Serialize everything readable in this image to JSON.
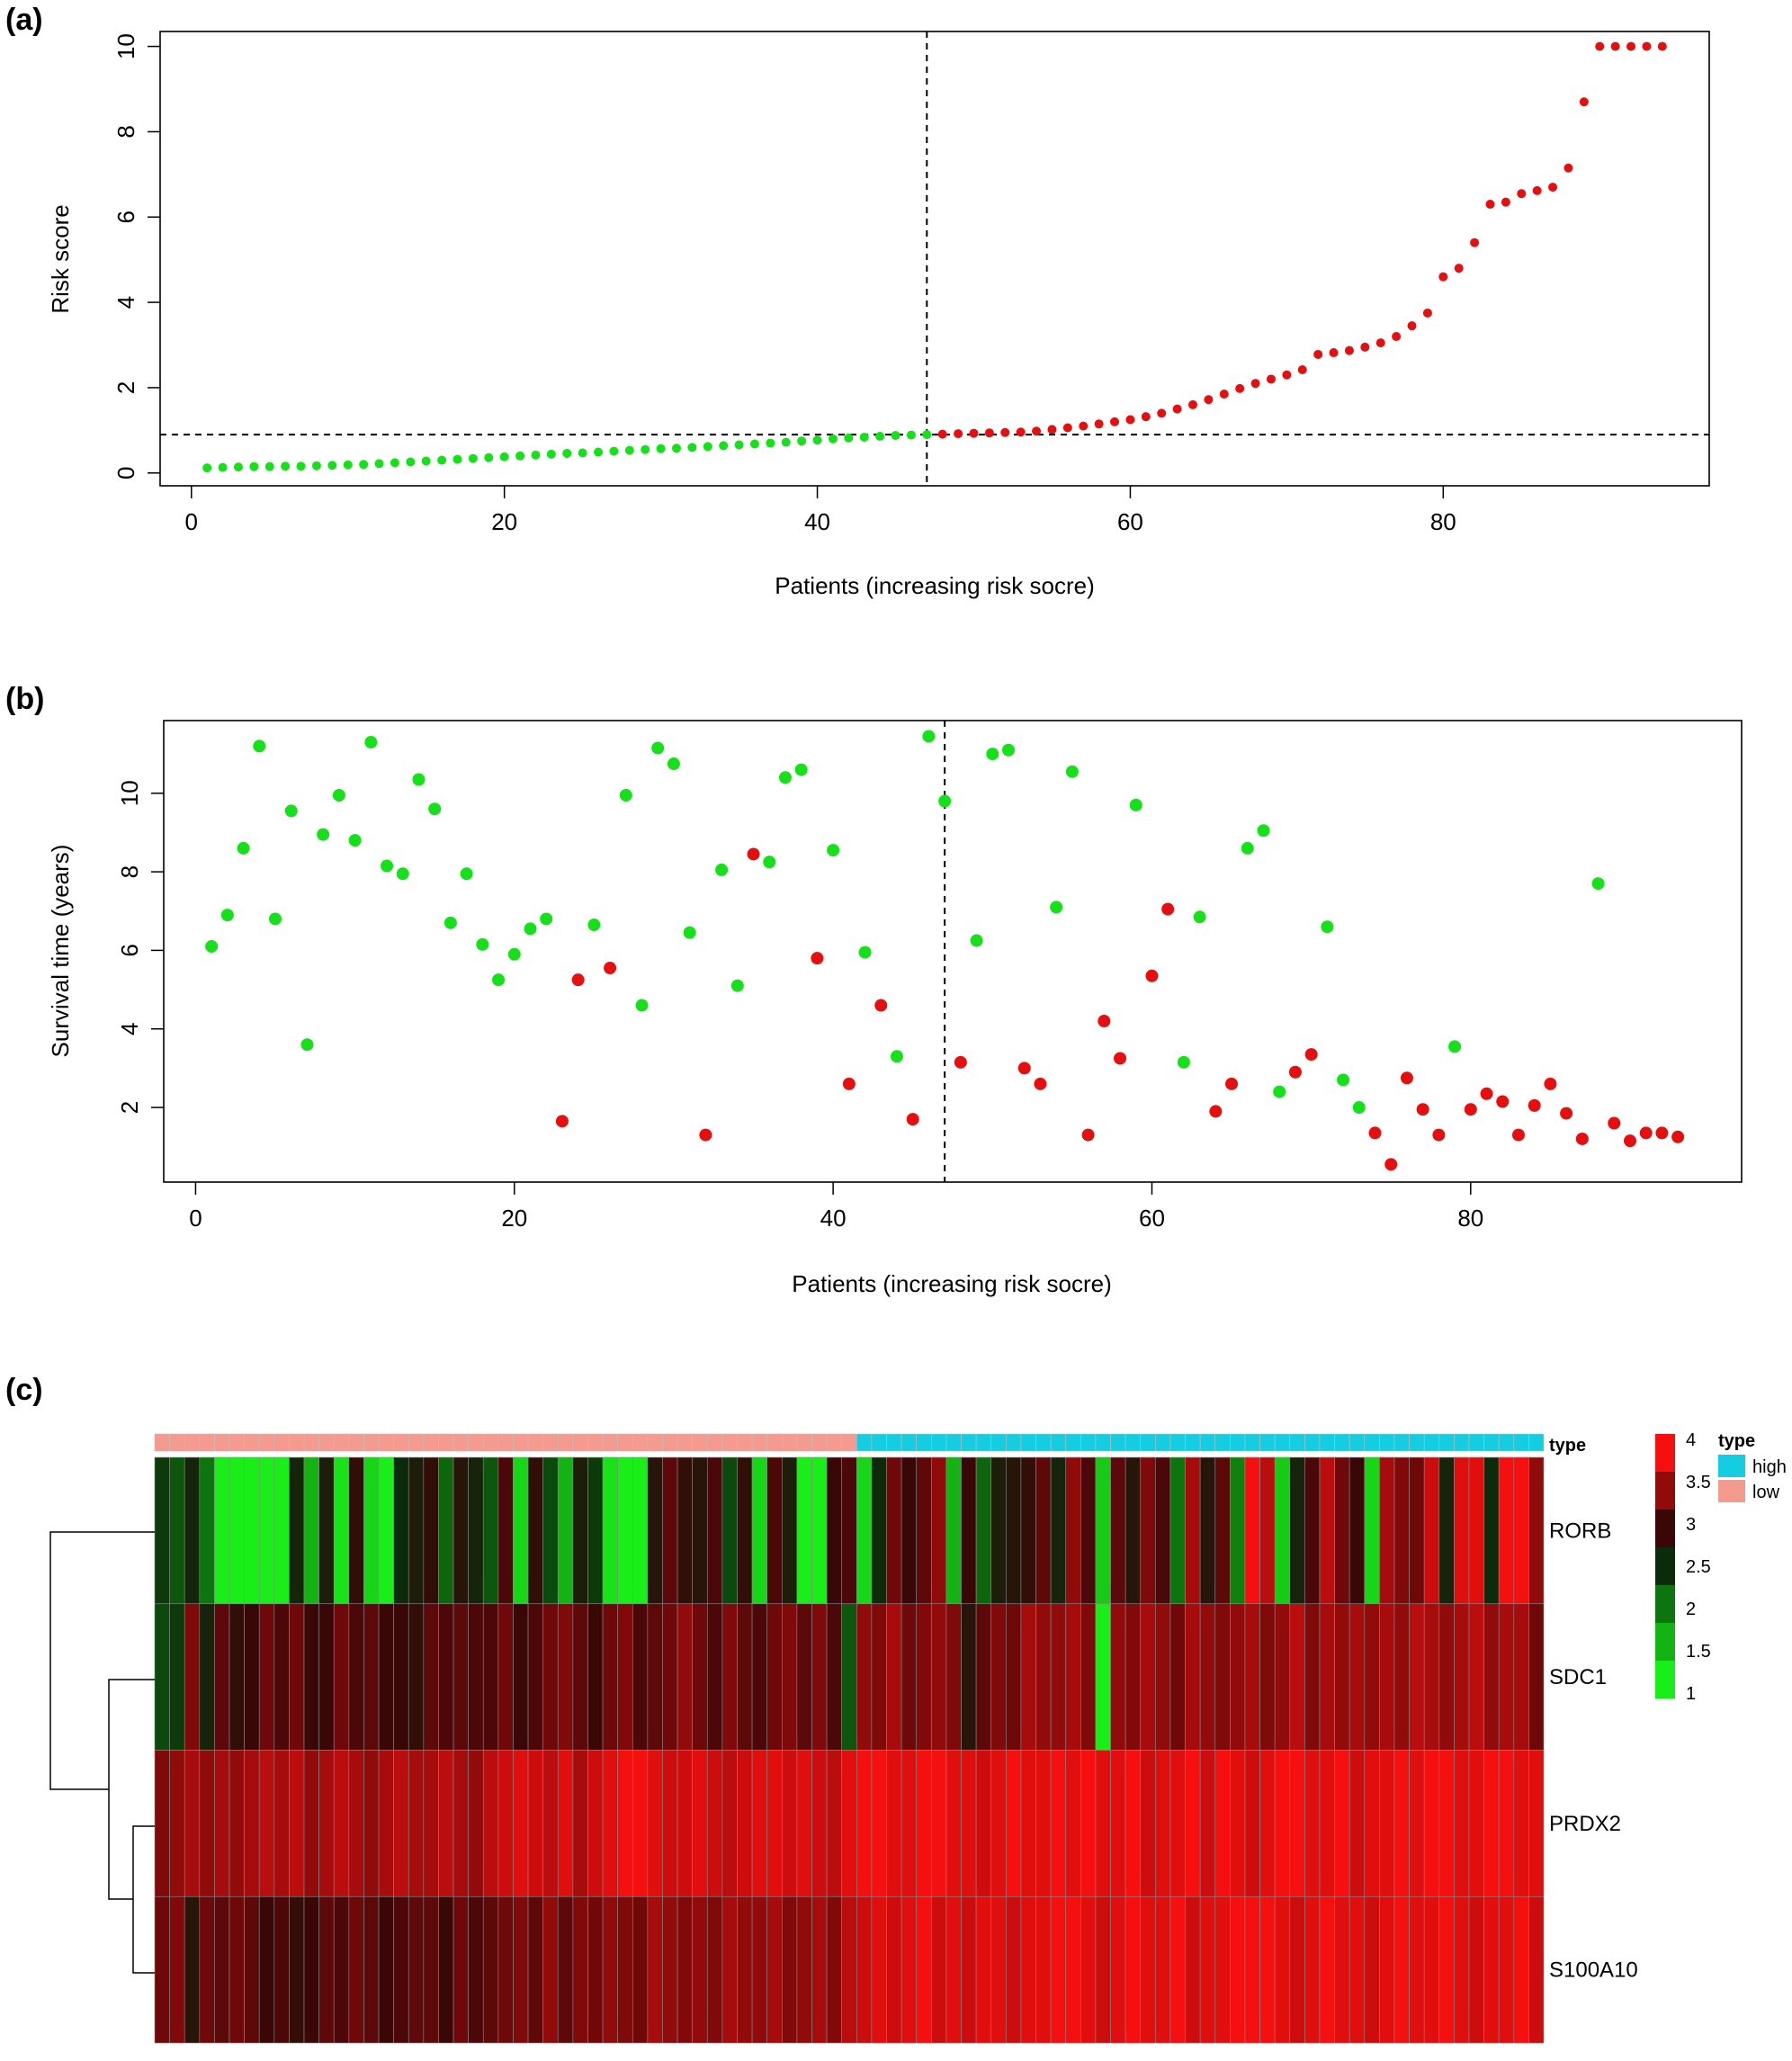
{
  "panels": {
    "a": "(a)",
    "b": "(b)",
    "c": "(c)"
  },
  "colors": {
    "low_point": "#16e01a",
    "high_point": "#e50f0f",
    "type_high": "#15cde0",
    "type_low": "#f49a8e",
    "heat_1": "#19ee19",
    "heat_1_5": "#13b313",
    "heat_2": "#0d750d",
    "heat_2_5": "#0c2b0b",
    "heat_3": "#3a0707",
    "heat_3_5": "#920b0b",
    "heat_4": "#f50f0f"
  },
  "chart_data": [
    {
      "type": "scatter",
      "title": "",
      "xlabel": "Patients (increasing risk socre)",
      "ylabel": "Risk score",
      "xlim": [
        -2,
        97
      ],
      "ylim": [
        -0.3,
        10.35
      ],
      "xticks": [
        "0",
        "20",
        "40",
        "60",
        "80"
      ],
      "yticks": [
        "0",
        "2",
        "4",
        "6",
        "8",
        "10"
      ],
      "cutoff_patient": 47,
      "cutoff_value": 0.9,
      "grid": false,
      "series": [
        {
          "values": [
            0.12,
            0.13,
            0.14,
            0.15,
            0.15,
            0.16,
            0.16,
            0.17,
            0.18,
            0.19,
            0.2,
            0.22,
            0.24,
            0.26,
            0.28,
            0.3,
            0.32,
            0.34,
            0.36,
            0.38,
            0.4,
            0.42,
            0.44,
            0.46,
            0.47,
            0.49,
            0.51,
            0.53,
            0.55,
            0.57,
            0.58,
            0.6,
            0.62,
            0.64,
            0.66,
            0.68,
            0.7,
            0.72,
            0.75,
            0.77,
            0.8,
            0.82,
            0.84,
            0.86,
            0.88,
            0.89,
            0.9
          ]
        },
        {
          "values": [
            0.91,
            0.92,
            0.93,
            0.94,
            0.95,
            0.96,
            0.98,
            1.02,
            1.06,
            1.1,
            1.15,
            1.2,
            1.25,
            1.32,
            1.4,
            1.5,
            1.6,
            1.72,
            1.85,
            1.98,
            2.1,
            2.2,
            2.3,
            2.42,
            2.78,
            2.82,
            2.87,
            2.95,
            3.05,
            3.2,
            3.45,
            3.75,
            4.6,
            4.8,
            5.4,
            6.3,
            6.35,
            6.55,
            6.62,
            6.7,
            7.15,
            8.7,
            10,
            10,
            10,
            10,
            10
          ]
        }
      ]
    },
    {
      "type": "scatter",
      "title": "",
      "xlabel": "Patients (increasing risk socre)",
      "ylabel": "Survival time (years)",
      "xlim": [
        -2,
        97
      ],
      "ylim": [
        0.1,
        11.85
      ],
      "xticks": [
        "0",
        "20",
        "40",
        "60",
        "80"
      ],
      "yticks": [
        "2",
        "4",
        "6",
        "8",
        "10"
      ],
      "cutoff_patient": 47,
      "grid": false,
      "points": [
        [
          1,
          6.1,
          "low"
        ],
        [
          2,
          6.9,
          "low"
        ],
        [
          3,
          8.6,
          "low"
        ],
        [
          4,
          11.2,
          "low"
        ],
        [
          5,
          6.8,
          "low"
        ],
        [
          6,
          9.55,
          "low"
        ],
        [
          7,
          3.6,
          "low"
        ],
        [
          8,
          8.95,
          "low"
        ],
        [
          9,
          9.95,
          "low"
        ],
        [
          10,
          8.8,
          "low"
        ],
        [
          11,
          11.3,
          "low"
        ],
        [
          12,
          8.15,
          "low"
        ],
        [
          13,
          7.95,
          "low"
        ],
        [
          14,
          10.35,
          "low"
        ],
        [
          15,
          9.6,
          "low"
        ],
        [
          16,
          6.7,
          "low"
        ],
        [
          17,
          7.95,
          "low"
        ],
        [
          18,
          6.15,
          "low"
        ],
        [
          19,
          5.25,
          "low"
        ],
        [
          20,
          5.9,
          "low"
        ],
        [
          21,
          6.55,
          "low"
        ],
        [
          22,
          6.8,
          "low"
        ],
        [
          23,
          1.65,
          "high"
        ],
        [
          24,
          5.25,
          "high"
        ],
        [
          25,
          6.65,
          "low"
        ],
        [
          26,
          5.55,
          "high"
        ],
        [
          27,
          9.95,
          "low"
        ],
        [
          28,
          4.6,
          "low"
        ],
        [
          29,
          11.15,
          "low"
        ],
        [
          30,
          10.75,
          "low"
        ],
        [
          31,
          6.45,
          "low"
        ],
        [
          32,
          1.3,
          "high"
        ],
        [
          33,
          8.05,
          "low"
        ],
        [
          34,
          5.1,
          "low"
        ],
        [
          35,
          8.45,
          "high"
        ],
        [
          36,
          8.25,
          "low"
        ],
        [
          37,
          10.4,
          "low"
        ],
        [
          38,
          10.6,
          "low"
        ],
        [
          39,
          5.8,
          "high"
        ],
        [
          40,
          8.55,
          "low"
        ],
        [
          41,
          2.6,
          "high"
        ],
        [
          42,
          5.95,
          "low"
        ],
        [
          43,
          4.6,
          "high"
        ],
        [
          44,
          3.3,
          "low"
        ],
        [
          45,
          1.7,
          "high"
        ],
        [
          46,
          11.45,
          "low"
        ],
        [
          47,
          9.8,
          "low"
        ],
        [
          48,
          3.15,
          "high"
        ],
        [
          49,
          6.25,
          "low"
        ],
        [
          50,
          11.0,
          "low"
        ],
        [
          51,
          11.1,
          "low"
        ],
        [
          52,
          3.0,
          "high"
        ],
        [
          53,
          2.6,
          "high"
        ],
        [
          54,
          7.1,
          "low"
        ],
        [
          55,
          10.55,
          "low"
        ],
        [
          56,
          1.3,
          "high"
        ],
        [
          57,
          4.2,
          "high"
        ],
        [
          58,
          3.25,
          "high"
        ],
        [
          59,
          9.7,
          "low"
        ],
        [
          60,
          5.35,
          "high"
        ],
        [
          61,
          7.05,
          "high"
        ],
        [
          62,
          3.15,
          "low"
        ],
        [
          63,
          6.85,
          "low"
        ],
        [
          64,
          1.9,
          "high"
        ],
        [
          65,
          2.6,
          "high"
        ],
        [
          66,
          8.6,
          "low"
        ],
        [
          67,
          9.05,
          "low"
        ],
        [
          68,
          2.4,
          "low"
        ],
        [
          69,
          2.9,
          "high"
        ],
        [
          70,
          3.35,
          "high"
        ],
        [
          71,
          6.6,
          "low"
        ],
        [
          72,
          2.7,
          "low"
        ],
        [
          73,
          2.0,
          "low"
        ],
        [
          74,
          1.35,
          "high"
        ],
        [
          75,
          0.55,
          "high"
        ],
        [
          76,
          2.75,
          "high"
        ],
        [
          77,
          1.95,
          "high"
        ],
        [
          78,
          1.3,
          "high"
        ],
        [
          79,
          3.55,
          "low"
        ],
        [
          80,
          1.95,
          "high"
        ],
        [
          81,
          2.35,
          "high"
        ],
        [
          82,
          2.15,
          "high"
        ],
        [
          83,
          1.3,
          "high"
        ],
        [
          84,
          2.05,
          "high"
        ],
        [
          85,
          2.6,
          "high"
        ],
        [
          86,
          1.85,
          "high"
        ],
        [
          87,
          1.2,
          "high"
        ],
        [
          88,
          7.7,
          "low"
        ],
        [
          89,
          1.6,
          "high"
        ],
        [
          90,
          1.15,
          "high"
        ],
        [
          91,
          1.35,
          "high"
        ],
        [
          92,
          1.35,
          "high"
        ],
        [
          93,
          1.25,
          "high"
        ]
      ]
    },
    {
      "type": "heatmap",
      "title": "",
      "type_row_label": "type",
      "legend_title": "type",
      "legend_entries": [
        "high",
        "low"
      ],
      "legend_high_visible": "high",
      "scale_ticks": [
        "4",
        "3.5",
        "3",
        "2.5",
        "2",
        "1.5",
        "1"
      ],
      "value_range": [
        1,
        4
      ],
      "low_count": 47,
      "high_count": 46,
      "genes": [
        "RORB",
        "SDC1",
        "PRDX2",
        "S100A10"
      ],
      "values": [
        [
          2.4,
          2.2,
          2.6,
          2.0,
          1,
          1,
          1,
          1,
          1,
          2.6,
          1.5,
          2.7,
          1.1,
          2.9,
          1.2,
          1,
          2.5,
          2.7,
          2.9,
          2.1,
          2.8,
          2.6,
          2.2,
          3.1,
          1.2,
          2.9,
          2.3,
          1.5,
          2.7,
          2.4,
          1.1,
          1,
          1,
          2.8,
          3.2,
          2.9,
          2.8,
          3.1,
          2.3,
          2.9,
          1.2,
          3.1,
          2.7,
          1,
          1,
          3.0,
          3.1,
          1.2,
          2.5,
          3.3,
          3.0,
          3.2,
          3.5,
          1.5,
          3.0,
          2.1,
          2.7,
          2.8,
          2.9,
          3.2,
          2.6,
          3.5,
          3.1,
          1.3,
          3.2,
          2.8,
          3.4,
          3.1,
          2.0,
          3.6,
          2.8,
          3.2,
          1.9,
          4,
          3.7,
          1.3,
          2.6,
          3.1,
          3.7,
          3.3,
          3.0,
          1.2,
          3.6,
          3.4,
          3.3,
          3.8,
          2.6,
          3.9,
          3.9,
          2.5,
          4,
          4,
          3.5
        ],
        [
          2.3,
          2.4,
          3.4,
          2.6,
          3.2,
          2.9,
          3.0,
          3.3,
          3.1,
          3.3,
          3.0,
          3.0,
          3.3,
          3.1,
          3.2,
          3.0,
          3.0,
          2.9,
          3.2,
          3.1,
          3.2,
          3.1,
          3.1,
          3.3,
          3.0,
          3.1,
          3.3,
          3.4,
          3.2,
          3.0,
          3.3,
          3.4,
          3.1,
          3.2,
          3.3,
          3.5,
          3.3,
          3.1,
          3.4,
          3.2,
          3.1,
          3.3,
          3.4,
          3.2,
          3.4,
          3.1,
          2.2,
          3.5,
          3.4,
          3.6,
          3.3,
          3.4,
          3.5,
          3.4,
          2.8,
          3.2,
          3.4,
          3.3,
          3.6,
          3.5,
          3.5,
          3.6,
          3.4,
          1,
          3.5,
          3.4,
          3.6,
          3.5,
          3.3,
          3.6,
          3.5,
          3.4,
          3.5,
          3.6,
          3.4,
          3.5,
          3.7,
          3.4,
          3.6,
          3.5,
          3.6,
          3.5,
          3.6,
          3.5,
          3.7,
          3.6,
          3.5,
          3.6,
          3.7,
          3.5,
          3.6,
          3.6,
          3.3
        ],
        [
          3.4,
          3.5,
          3.6,
          3.5,
          3.6,
          3.5,
          3.6,
          3.7,
          3.6,
          3.7,
          3.5,
          3.6,
          3.7,
          3.6,
          3.5,
          3.6,
          3.7,
          3.6,
          3.6,
          3.7,
          3.6,
          3.5,
          3.7,
          3.8,
          3.9,
          3.8,
          3.7,
          3.9,
          3.6,
          3.8,
          3.9,
          4,
          4,
          3.9,
          3.8,
          3.8,
          3.9,
          3.8,
          3.7,
          3.8,
          3.9,
          3.9,
          3.8,
          3.9,
          3.8,
          3.7,
          3.9,
          4,
          4,
          3.9,
          3.9,
          4,
          4,
          3.9,
          3.9,
          3.8,
          3.9,
          4,
          3.9,
          3.9,
          4,
          3.9,
          4,
          3.9,
          3.9,
          4,
          3.8,
          3.9,
          3.9,
          4,
          3.8,
          4,
          3.9,
          3.8,
          3.9,
          4,
          4,
          3.9,
          3.9,
          4,
          3.8,
          3.9,
          3.9,
          4,
          3.9,
          4,
          4,
          3.9,
          3.9,
          4,
          4,
          3.9,
          3.9
        ],
        [
          3.3,
          3.4,
          2.8,
          3.3,
          3.2,
          3.3,
          3.2,
          3.0,
          3.1,
          2.9,
          3.0,
          3.2,
          3.1,
          3.3,
          3.2,
          3.0,
          3.1,
          3.2,
          3.2,
          3.0,
          3.3,
          3.1,
          3.2,
          3.3,
          3.4,
          3.2,
          3.5,
          3.2,
          3.4,
          3.3,
          3.5,
          3.4,
          3.3,
          3.6,
          3.5,
          3.4,
          3.5,
          3.4,
          3.6,
          3.5,
          3.5,
          3.6,
          3.4,
          3.5,
          3.6,
          3.4,
          3.7,
          3.8,
          3.9,
          3.8,
          3.9,
          4,
          3.8,
          3.9,
          3.8,
          3.9,
          3.9,
          3.8,
          3.9,
          3.9,
          4,
          4,
          3.9,
          3.8,
          3.9,
          4,
          3.9,
          3.9,
          4,
          3.8,
          3.9,
          3.9,
          4,
          4,
          4,
          3.9,
          3.8,
          3.9,
          4,
          3.9,
          3.9,
          3.8,
          3.9,
          4,
          3.9,
          3.9,
          4,
          3.9,
          3.8,
          3.9,
          3.9,
          4,
          3.8
        ]
      ]
    }
  ]
}
